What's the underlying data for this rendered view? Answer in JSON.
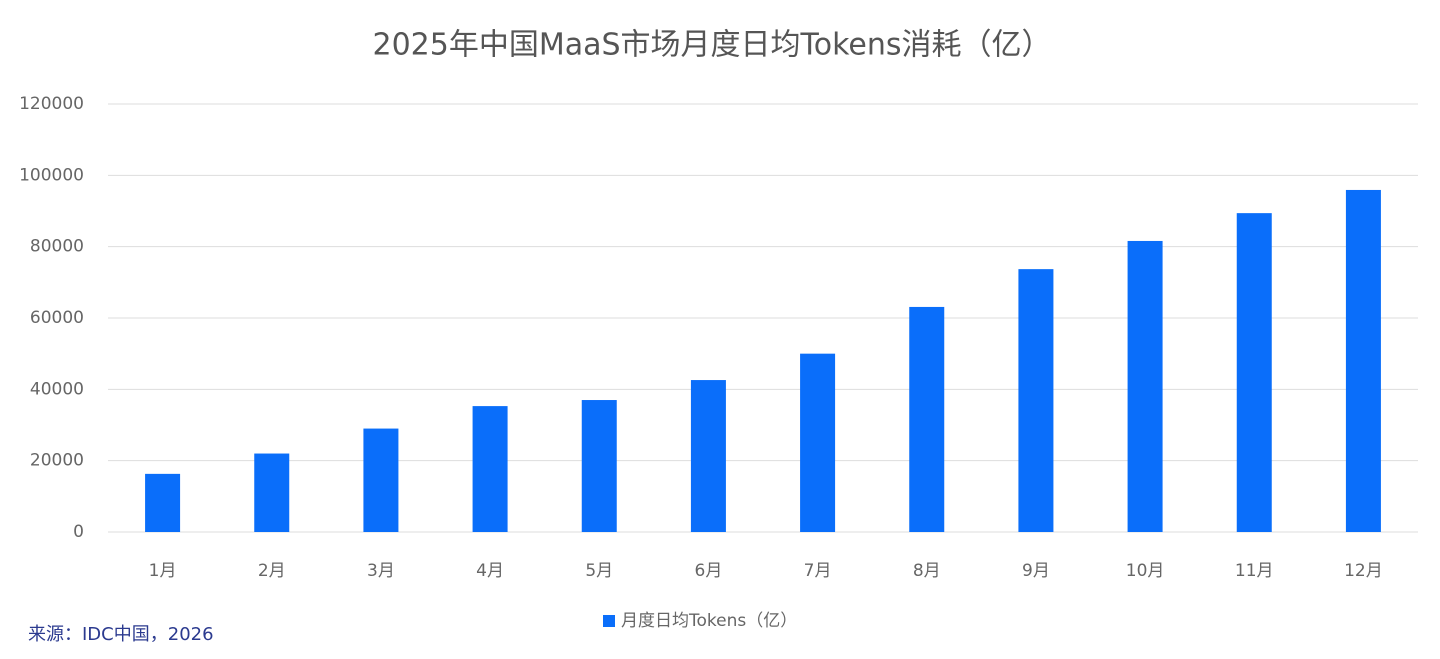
{
  "chart_data": {
    "type": "bar",
    "title": "2025年中国MaaS市场月度日均Tokens消耗（亿）",
    "categories": [
      "1月",
      "2月",
      "3月",
      "4月",
      "5月",
      "6月",
      "7月",
      "8月",
      "9月",
      "10月",
      "11月",
      "12月"
    ],
    "series": [
      {
        "name": "月度日均Tokens（亿）",
        "color": "#0a6efa",
        "values": [
          16300,
          22000,
          29000,
          35300,
          37000,
          42600,
          50000,
          63100,
          73700,
          81600,
          89400,
          95900
        ]
      }
    ],
    "ylim": [
      0,
      120000
    ],
    "yticks": [
      0,
      20000,
      40000,
      60000,
      80000,
      100000,
      120000
    ],
    "grid": true,
    "legend": "bottom",
    "source": "来源：IDC中国，2026"
  }
}
